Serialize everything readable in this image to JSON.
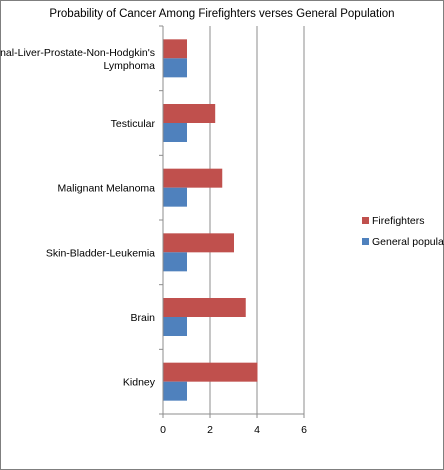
{
  "chart_data": {
    "type": "bar",
    "orientation": "horizontal",
    "title": "Probability of Cancer Among Firefighters verses General Population",
    "xlabel": "",
    "ylabel": "",
    "categories": [
      [
        "Intestinal-Liver-Prostate-Non-Hodgkin's",
        "Lymphoma"
      ],
      [
        "Testicular"
      ],
      [
        "Malignant Melanoma"
      ],
      [
        "Skin-Bladder-Leukemia"
      ],
      [
        "Brain"
      ],
      [
        "Kidney"
      ]
    ],
    "series": [
      {
        "name": "Firefighters",
        "color": "#c0504d",
        "values": [
          1.0,
          2.2,
          2.5,
          3.0,
          3.5,
          4.0
        ]
      },
      {
        "name": "General population",
        "color": "#4f81bd",
        "values": [
          1.0,
          1.0,
          1.0,
          1.0,
          1.0,
          1.0
        ]
      }
    ],
    "xlim": [
      0,
      6
    ],
    "xticks": [
      "0",
      "2",
      "4",
      "6"
    ],
    "grid": "vertical",
    "legend_position": "right"
  }
}
